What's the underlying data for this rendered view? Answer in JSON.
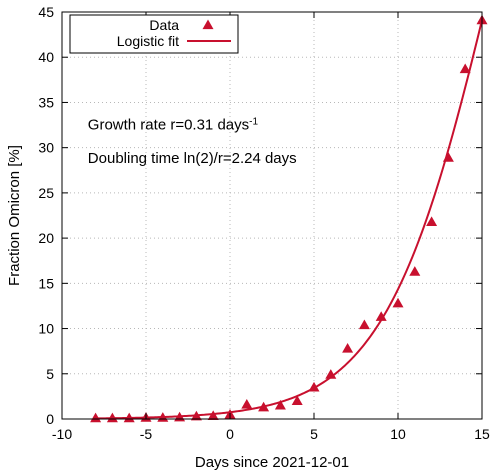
{
  "chart_data": {
    "type": "scatter",
    "xlabel": "Days since 2021-12-01",
    "ylabel": "Fraction Omicron [%]",
    "xlim": [
      -10,
      15
    ],
    "ylim": [
      0,
      45
    ],
    "xticks": [
      -10,
      -5,
      0,
      5,
      10,
      15
    ],
    "yticks": [
      0,
      5,
      10,
      15,
      20,
      25,
      30,
      35,
      40,
      45
    ],
    "grid": true,
    "legend_position": "top-left",
    "colors": {
      "series": "#c8102e"
    },
    "series": [
      {
        "name": "Data",
        "kind": "points",
        "marker": "triangle",
        "x": [
          -8,
          -7,
          -6,
          -5,
          -4,
          -3,
          -2,
          -1,
          0,
          1,
          2,
          3,
          4,
          5,
          6,
          7,
          8,
          9,
          10,
          11,
          12,
          13,
          14,
          15
        ],
        "y": [
          0.1,
          0.1,
          0.1,
          0.15,
          0.15,
          0.2,
          0.3,
          0.35,
          0.5,
          1.6,
          1.3,
          1.5,
          2.0,
          3.5,
          4.9,
          7.8,
          10.4,
          11.3,
          12.8,
          16.3,
          21.8,
          28.9,
          38.7,
          44.1
        ]
      },
      {
        "name": "Logistic fit",
        "kind": "line",
        "model": {
          "family": "logistic",
          "rate": 0.31,
          "ceiling": 100,
          "reference_x": 15,
          "reference_y": 44.1
        }
      }
    ],
    "annotations": [
      {
        "text": "Growth rate r=0.31 days",
        "superscript": "-1",
        "anchor": {
          "x": -9,
          "y": 32
        }
      },
      {
        "text": "Doubling time ln(2)/r=2.24 days",
        "anchor": {
          "x": -9,
          "y": 28.3
        }
      }
    ]
  }
}
